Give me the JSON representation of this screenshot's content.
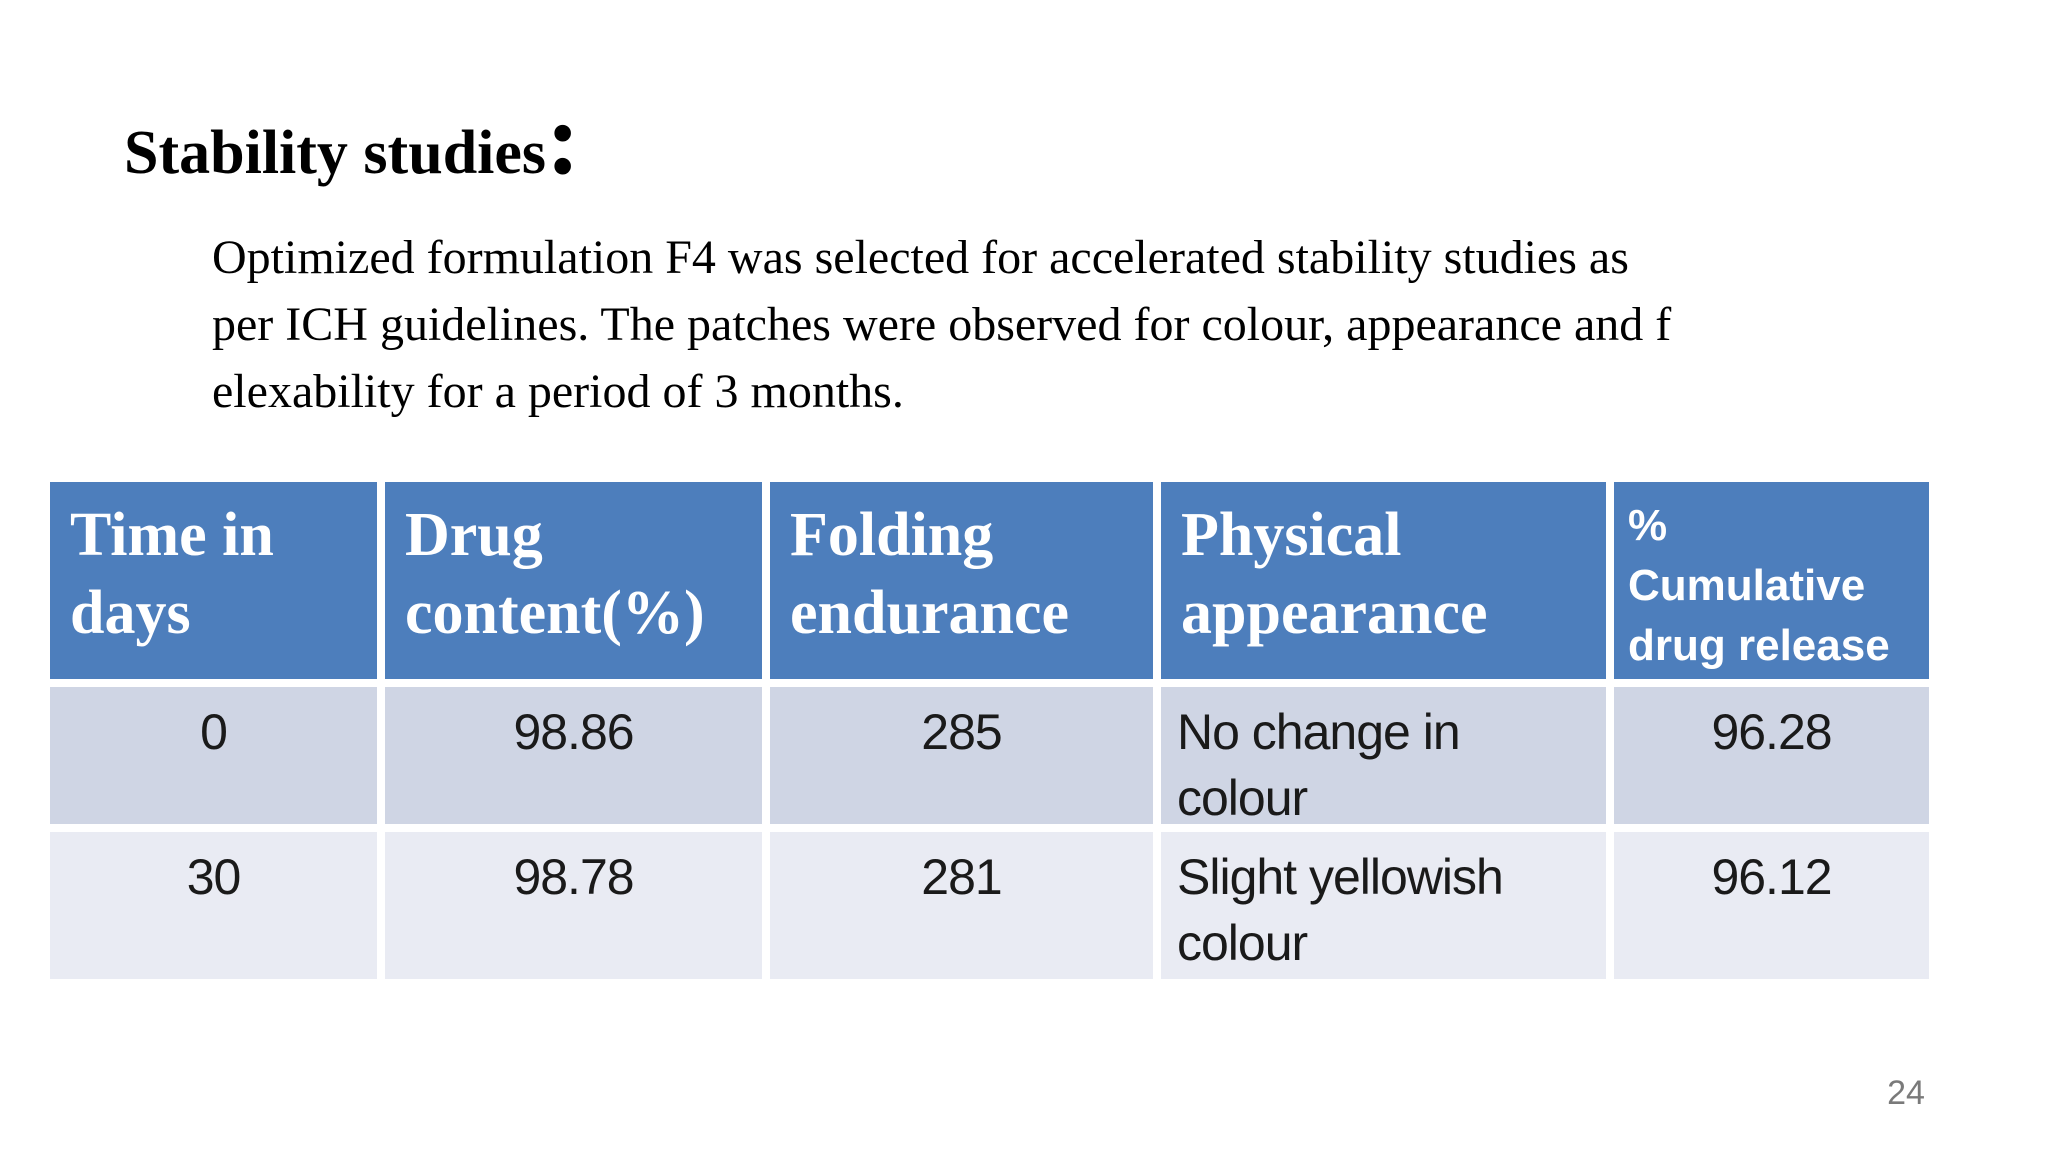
{
  "slide": {
    "title": "Stability studies",
    "colon": ":",
    "paragraph": "Optimized formulation F4 was selected for accelerated stability studies as\nper ICH guidelines. The patches were observed for colour, appearance and f\nelexability for a period of 3 months.",
    "page_number": "24"
  },
  "table": {
    "headers": [
      "Time in\ndays",
      "Drug\ncontent(%)",
      "Folding\nendurance",
      "Physical\nappearance",
      "%\nCumulative\ndrug release"
    ],
    "rows": [
      [
        "0",
        "98.86",
        "285",
        "No change in\ncolour",
        "96.28"
      ],
      [
        "30",
        "98.78",
        "281",
        "Slight yellowish\ncolour",
        "96.12"
      ]
    ]
  },
  "colors": {
    "slide_bg": "#FFFFFF",
    "header_bg": "#4D7EBC",
    "header_text": "#FFFFFF",
    "row_odd_bg": "#CFD5E4",
    "row_even_bg": "#E9EBF3",
    "body_text": "#1A1A1A",
    "page_number_text": "#7A7A7A"
  }
}
